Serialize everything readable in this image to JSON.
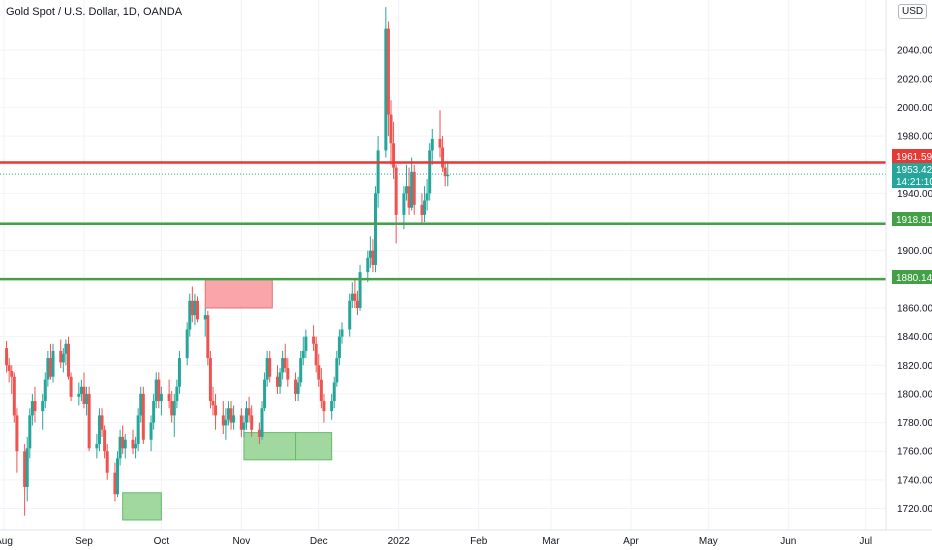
{
  "title": "Gold Spot / U.S. Dollar, 1D, OANDA",
  "currency": "USD",
  "price_tags": {
    "red_line": "1961.591",
    "last_price": "1953.425",
    "countdown": "14:21:10",
    "green_line_upper": "1918.819",
    "green_line_lower": "1880.144"
  },
  "colors": {
    "up": "#26a69a",
    "down": "#ef5350",
    "resistance_line": "#e53935",
    "support_line": "#43a047",
    "resistance_zone": "#f8959b",
    "support_zone": "#8fd18f",
    "last_price": "#26a69a"
  },
  "chart_data": {
    "type": "candlestick",
    "title": "Gold Spot / U.S. Dollar, 1D, OANDA",
    "ylim": [
      1705,
      2075
    ],
    "yticks": [
      1720,
      1740,
      1760,
      1780,
      1800,
      1820,
      1840,
      1860,
      1880,
      1900,
      1920,
      1940,
      1960,
      1980,
      2000,
      2020,
      2040
    ],
    "ytick_labels": [
      "1720.000",
      "1740.000",
      "1760.000",
      "1780.000",
      "1800.000",
      "1820.000",
      "1840.000",
      "1860.000",
      "1880.000",
      "1900.000",
      "1920.000",
      "1940.000",
      "1960.000",
      "1980.000",
      "2000.000",
      "2020.000",
      "2040.000"
    ],
    "xtick_labels": [
      "Aug",
      "Sep",
      "Oct",
      "Nov",
      "Dec",
      "2022",
      "Feb",
      "Mar",
      "Apr",
      "May",
      "Jun",
      "Jul"
    ],
    "horizontal_lines": [
      {
        "value": 1961.591,
        "kind": "resistance"
      },
      {
        "value": 1918.819,
        "kind": "support"
      },
      {
        "value": 1880.144,
        "kind": "support"
      }
    ],
    "zones": [
      {
        "kind": "resistance",
        "start_day": 78,
        "end_day": 104,
        "top": 1880,
        "bottom": 1860
      },
      {
        "kind": "support",
        "start_day": 46,
        "end_day": 61,
        "top": 1731,
        "bottom": 1712
      },
      {
        "kind": "support",
        "start_day": 93,
        "end_day": 113,
        "top": 1773,
        "bottom": 1754
      },
      {
        "kind": "support",
        "start_day": 113,
        "end_day": 127,
        "top": 1773,
        "bottom": 1754
      }
    ],
    "last_price": 1953.425,
    "candles_start": "2021-08-01",
    "candles": [
      [
        1832,
        1837,
        1815,
        1820
      ],
      [
        1820,
        1825,
        1808,
        1816
      ],
      [
        1816,
        1820,
        1800,
        1812
      ],
      [
        1812,
        1815,
        1780,
        1785
      ],
      [
        1785,
        1790,
        1745,
        1760
      ],
      [
        1760,
        1765,
        1715,
        1735
      ],
      [
        1735,
        1770,
        1725,
        1762
      ],
      [
        1762,
        1790,
        1755,
        1785
      ],
      [
        1785,
        1800,
        1778,
        1795
      ],
      [
        1795,
        1805,
        1780,
        1788
      ],
      [
        1788,
        1800,
        1775,
        1795
      ],
      [
        1795,
        1815,
        1790,
        1810
      ],
      [
        1810,
        1830,
        1805,
        1825
      ],
      [
        1825,
        1835,
        1810,
        1812
      ],
      [
        1812,
        1835,
        1808,
        1830
      ],
      [
        1830,
        1838,
        1818,
        1822
      ],
      [
        1822,
        1832,
        1815,
        1828
      ],
      [
        1828,
        1838,
        1820,
        1835
      ],
      [
        1835,
        1840,
        1810,
        1812
      ],
      [
        1812,
        1815,
        1795,
        1798
      ],
      [
        1798,
        1808,
        1792,
        1800
      ],
      [
        1800,
        1810,
        1795,
        1805
      ],
      [
        1805,
        1815,
        1790,
        1793
      ],
      [
        1793,
        1805,
        1785,
        1800
      ],
      [
        1800,
        1805,
        1760,
        1762
      ],
      [
        1762,
        1772,
        1755,
        1765
      ],
      [
        1765,
        1790,
        1760,
        1785
      ],
      [
        1785,
        1790,
        1770,
        1775
      ],
      [
        1775,
        1778,
        1755,
        1760
      ],
      [
        1760,
        1765,
        1740,
        1745
      ],
      [
        1745,
        1752,
        1725,
        1730
      ],
      [
        1730,
        1760,
        1728,
        1755
      ],
      [
        1755,
        1775,
        1750,
        1770
      ],
      [
        1770,
        1778,
        1758,
        1762
      ],
      [
        1762,
        1772,
        1755,
        1768
      ],
      [
        1768,
        1775,
        1758,
        1762
      ],
      [
        1762,
        1770,
        1755,
        1765
      ],
      [
        1765,
        1790,
        1760,
        1785
      ],
      [
        1785,
        1805,
        1780,
        1800
      ],
      [
        1800,
        1805,
        1765,
        1768
      ],
      [
        1768,
        1785,
        1760,
        1780
      ],
      [
        1780,
        1800,
        1775,
        1795
      ],
      [
        1795,
        1815,
        1790,
        1810
      ],
      [
        1810,
        1815,
        1790,
        1795
      ],
      [
        1795,
        1805,
        1785,
        1800
      ],
      [
        1800,
        1810,
        1790,
        1795
      ],
      [
        1795,
        1802,
        1780,
        1785
      ],
      [
        1785,
        1800,
        1770,
        1795
      ],
      [
        1795,
        1810,
        1790,
        1805
      ],
      [
        1805,
        1830,
        1800,
        1825
      ],
      [
        1825,
        1850,
        1820,
        1845
      ],
      [
        1845,
        1870,
        1840,
        1865
      ],
      [
        1865,
        1875,
        1850,
        1855
      ],
      [
        1855,
        1870,
        1848,
        1865
      ],
      [
        1865,
        1868,
        1850,
        1852
      ],
      [
        1852,
        1860,
        1840,
        1855
      ],
      [
        1855,
        1858,
        1820,
        1825
      ],
      [
        1825,
        1830,
        1790,
        1795
      ],
      [
        1795,
        1805,
        1785,
        1792
      ],
      [
        1792,
        1800,
        1775,
        1785
      ],
      [
        1785,
        1795,
        1772,
        1778
      ],
      [
        1778,
        1790,
        1768,
        1782
      ],
      [
        1782,
        1795,
        1778,
        1790
      ],
      [
        1790,
        1795,
        1775,
        1780
      ],
      [
        1780,
        1792,
        1775,
        1785
      ],
      [
        1785,
        1790,
        1770,
        1775
      ],
      [
        1775,
        1785,
        1770,
        1780
      ],
      [
        1780,
        1795,
        1775,
        1790
      ],
      [
        1790,
        1798,
        1780,
        1785
      ],
      [
        1785,
        1792,
        1770,
        1775
      ],
      [
        1775,
        1780,
        1765,
        1770
      ],
      [
        1770,
        1795,
        1768,
        1790
      ],
      [
        1790,
        1815,
        1788,
        1810
      ],
      [
        1810,
        1830,
        1805,
        1825
      ],
      [
        1825,
        1830,
        1808,
        1812
      ],
      [
        1812,
        1820,
        1800,
        1805
      ],
      [
        1805,
        1818,
        1800,
        1815
      ],
      [
        1815,
        1830,
        1810,
        1825
      ],
      [
        1825,
        1835,
        1815,
        1818
      ],
      [
        1818,
        1825,
        1805,
        1810
      ],
      [
        1810,
        1815,
        1795,
        1800
      ],
      [
        1800,
        1812,
        1795,
        1808
      ],
      [
        1808,
        1830,
        1805,
        1825
      ],
      [
        1825,
        1840,
        1820,
        1830
      ],
      [
        1830,
        1845,
        1825,
        1840
      ],
      [
        1840,
        1848,
        1830,
        1835
      ],
      [
        1835,
        1840,
        1815,
        1820
      ],
      [
        1820,
        1828,
        1805,
        1810
      ],
      [
        1810,
        1818,
        1790,
        1795
      ],
      [
        1795,
        1800,
        1780,
        1788
      ],
      [
        1788,
        1800,
        1782,
        1795
      ],
      [
        1795,
        1812,
        1790,
        1808
      ],
      [
        1808,
        1830,
        1805,
        1825
      ],
      [
        1825,
        1845,
        1820,
        1840
      ],
      [
        1840,
        1850,
        1835,
        1845
      ],
      [
        1845,
        1870,
        1840,
        1865
      ],
      [
        1865,
        1878,
        1860,
        1870
      ],
      [
        1870,
        1880,
        1860,
        1865
      ],
      [
        1865,
        1872,
        1855,
        1860
      ],
      [
        1860,
        1890,
        1858,
        1885
      ],
      [
        1885,
        1900,
        1878,
        1895
      ],
      [
        1895,
        1910,
        1888,
        1900
      ],
      [
        1900,
        1908,
        1885,
        1890
      ],
      [
        1890,
        1945,
        1885,
        1940
      ],
      [
        1940,
        1980,
        1930,
        1970
      ],
      [
        1970,
        2070,
        1965,
        2055
      ],
      [
        2055,
        2060,
        1980,
        1995
      ],
      [
        1995,
        2005,
        1960,
        1975
      ],
      [
        1975,
        1990,
        1950,
        1958
      ],
      [
        1958,
        1960,
        1905,
        1925
      ],
      [
        1925,
        1945,
        1915,
        1940
      ],
      [
        1940,
        1960,
        1935,
        1945
      ],
      [
        1945,
        1958,
        1925,
        1930
      ],
      [
        1930,
        1965,
        1928,
        1955
      ],
      [
        1955,
        1960,
        1925,
        1932
      ],
      [
        1932,
        1940,
        1918,
        1925
      ],
      [
        1925,
        1945,
        1920,
        1935
      ],
      [
        1935,
        1950,
        1928,
        1940
      ],
      [
        1940,
        1975,
        1935,
        1970
      ],
      [
        1970,
        1985,
        1960,
        1978
      ],
      [
        1978,
        1998,
        1965,
        1972
      ],
      [
        1972,
        1980,
        1955,
        1958
      ],
      [
        1958,
        1962,
        1945,
        1952
      ],
      [
        1952,
        1962,
        1945,
        1953
      ]
    ]
  }
}
